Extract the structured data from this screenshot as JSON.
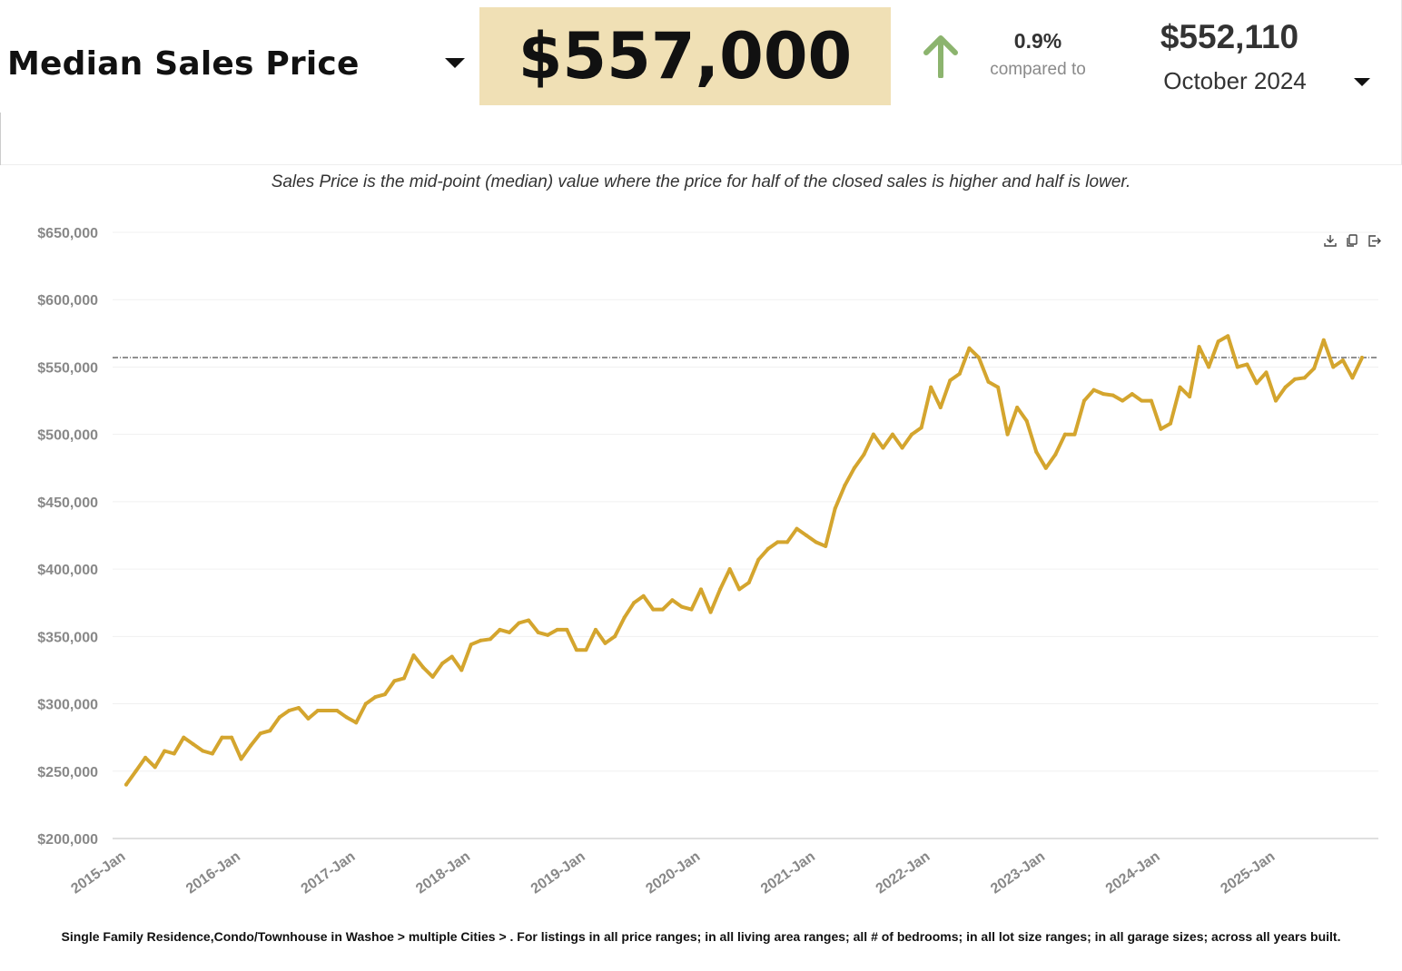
{
  "header": {
    "metric_label": "Median Sales Price",
    "value": "$557,000",
    "change_percent": "0.9%",
    "compared_label": "compared to",
    "compare_value": "$552,110",
    "compare_period": "October 2024",
    "value_bg_color": "#f0e0b5",
    "arrow_color": "#8cb46e"
  },
  "description": "Sales Price is the mid-point (median) value where the price for half of the closed sales is higher and half is lower.",
  "toolbar": {
    "icons": [
      "download-icon",
      "copy-icon",
      "export-icon"
    ]
  },
  "footer": "Single Family Residence,Condo/Townhouse in Washoe > multiple Cities > . For listings in all price ranges; in all living area ranges; all # of bedrooms; in all lot size ranges; in all garage sizes; across all years built.",
  "chart_data": {
    "type": "line",
    "title": "",
    "xlabel": "",
    "ylabel": "",
    "ylim": [
      200000,
      650000
    ],
    "y_ticks": [
      200000,
      250000,
      300000,
      350000,
      400000,
      450000,
      500000,
      550000,
      600000,
      650000
    ],
    "y_tick_labels": [
      "$200,000",
      "$250,000",
      "$300,000",
      "$350,000",
      "$400,000",
      "$450,000",
      "$500,000",
      "$550,000",
      "$600,000",
      "$650,000"
    ],
    "x_tick_labels": [
      "2015-Jan",
      "2016-Jan",
      "2017-Jan",
      "2018-Jan",
      "2019-Jan",
      "2020-Jan",
      "2021-Jan",
      "2022-Jan",
      "2023-Jan",
      "2024-Jan",
      "2025-Jan"
    ],
    "x_start": "2015-Jan",
    "line_color": "#d4a52e",
    "reference_line": 557000,
    "grid": true,
    "series": [
      {
        "name": "Median Sales Price",
        "values": [
          240000,
          250000,
          260000,
          253000,
          265000,
          263000,
          275000,
          270000,
          265000,
          263000,
          275000,
          275000,
          259000,
          269000,
          278000,
          280000,
          290000,
          295000,
          297000,
          289000,
          295000,
          295000,
          295000,
          290000,
          286000,
          300000,
          305000,
          307000,
          317000,
          319000,
          336000,
          327000,
          320000,
          330000,
          335000,
          325000,
          344000,
          347000,
          348000,
          355000,
          353000,
          360000,
          362000,
          353000,
          351000,
          355000,
          355000,
          340000,
          340000,
          355000,
          345000,
          350000,
          364000,
          375000,
          380000,
          370000,
          370000,
          377000,
          372000,
          370000,
          385000,
          368000,
          385000,
          400000,
          385000,
          390000,
          407000,
          415000,
          420000,
          420000,
          430000,
          425000,
          420000,
          417000,
          445000,
          462000,
          475000,
          485000,
          500000,
          490000,
          500000,
          490000,
          500000,
          505000,
          535000,
          520000,
          540000,
          545000,
          564000,
          557000,
          539000,
          535000,
          500000,
          520000,
          510000,
          487000,
          475000,
          485000,
          500000,
          500000,
          525000,
          533000,
          530000,
          529000,
          525000,
          530000,
          525000,
          525000,
          504000,
          508000,
          535000,
          528000,
          565000,
          550000,
          569000,
          573000,
          550000,
          552000,
          538000,
          546000,
          525000,
          535000,
          541000,
          542000,
          549000,
          570000,
          550000,
          555000,
          542000,
          557000
        ]
      }
    ]
  }
}
